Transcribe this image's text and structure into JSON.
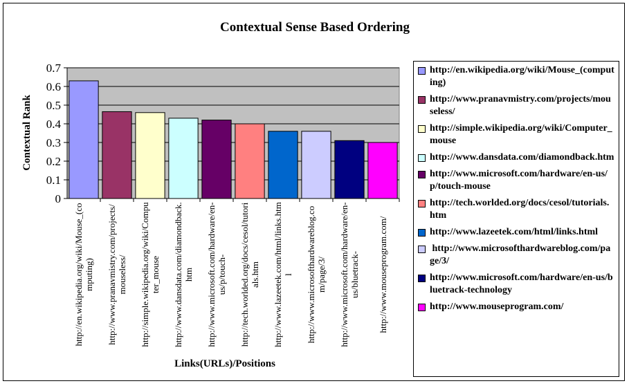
{
  "chart_data": {
    "type": "bar",
    "title": "Contextual Sense Based Ordering",
    "x_label": "Links(URLs)/Positions",
    "y_label": "Contextual Rank",
    "categories": [
      "http://en.wikipedia.org/wiki/Mouse_(computing)",
      "http://www.pranavmistry.com/projects/mouseless/",
      "http://simple.wikipedia.org/wiki/Computer_mouse",
      "http://www.dansdata.com/diamondback.htm",
      "http://www.microsoft.com/hardware/en-us/p/touch-",
      "http://tech.worlded.org/docs/cesol/tutorials.htm",
      "http://www.lazeetek.com/html/links.html",
      "http://www.microsofthardwareblog.com/page/3/",
      "http://www.microsoft.com/hardware/en-us/bluetrack-",
      "http://www.mouseprogram.com/"
    ],
    "series": [
      {
        "name": "http://en.wikipedia.org/wiki/Mouse_(computing)",
        "color": "#9999ff",
        "values": [
          0.63,
          null,
          null,
          null,
          null,
          null,
          null,
          null,
          null,
          null
        ]
      },
      {
        "name": "http://www.pranavmistry.com/projects/mouseless/",
        "color": "#993366",
        "values": [
          null,
          0.465,
          null,
          null,
          null,
          null,
          null,
          null,
          null,
          null
        ]
      },
      {
        "name": "http://simple.wikipedia.org/wiki/Computer_mouse",
        "color": "#ffffcc",
        "values": [
          null,
          null,
          0.46,
          null,
          null,
          null,
          null,
          null,
          null,
          null
        ]
      },
      {
        "name": "http://www.dansdata.com/diamondback.htm",
        "color": "#ccffff",
        "values": [
          null,
          null,
          null,
          0.43,
          null,
          null,
          null,
          null,
          null,
          null
        ]
      },
      {
        "name": "http://www.microsoft.com/hardware/en-us/p/touch-mouse",
        "color": "#660066",
        "values": [
          null,
          null,
          null,
          null,
          0.42,
          null,
          null,
          null,
          null,
          null
        ]
      },
      {
        "name": "http://tech.worlded.org/docs/cesol/tutorials.htm",
        "color": "#ff8080",
        "values": [
          null,
          null,
          null,
          null,
          null,
          0.4,
          null,
          null,
          null,
          null
        ]
      },
      {
        "name": "http://www.lazeetek.com/html/links.html",
        "color": "#0066cc",
        "values": [
          null,
          null,
          null,
          null,
          null,
          null,
          0.36,
          null,
          null,
          null
        ]
      },
      {
        "name": " http://www.microsofthardwareblog.com/page/3/",
        "color": "#ccccff",
        "values": [
          null,
          null,
          null,
          null,
          null,
          null,
          null,
          0.36,
          null,
          null
        ]
      },
      {
        "name": "http://www.microsoft.com/hardware/en-us/bluetrack-technology",
        "color": "#000080",
        "values": [
          null,
          null,
          null,
          null,
          null,
          null,
          null,
          null,
          0.31,
          null
        ]
      },
      {
        "name": "http://www.mouseprogram.com/",
        "color": "#ff00ff",
        "values": [
          null,
          null,
          null,
          null,
          null,
          null,
          null,
          null,
          null,
          0.3
        ]
      }
    ],
    "ylim": [
      0,
      0.7
    ],
    "yticks": [
      0,
      0.1,
      0.2,
      0.3,
      0.4,
      0.5,
      0.6,
      0.7
    ],
    "grid": true,
    "plot_background": "#c0c0c0",
    "legend": "right"
  }
}
